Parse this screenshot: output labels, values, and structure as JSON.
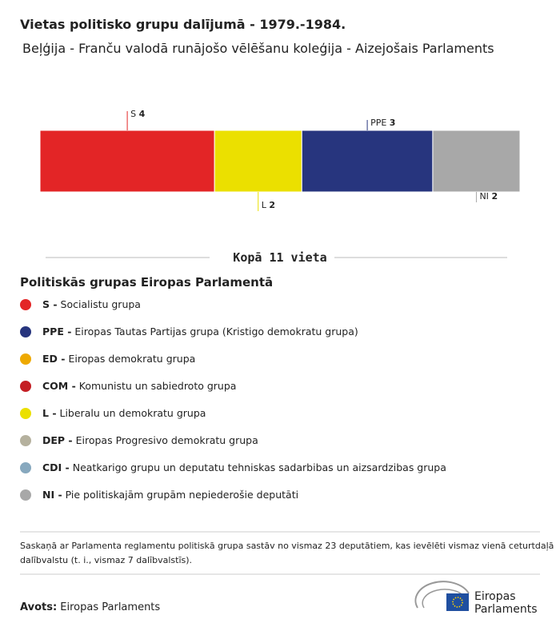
{
  "chart_data": {
    "type": "stacked_bar",
    "title": "Vietas politisko grupu dalījumā - 1979.-1984.",
    "subtitle": "Beļģija - Franču valodā runājošo vēlēšanu koleģija - Aizejošais Parlaments",
    "series": [
      {
        "name": "S",
        "color": "#e32526",
        "values": [
          4
        ]
      },
      {
        "name": "L",
        "color": "#ebe000",
        "values": [
          2
        ]
      },
      {
        "name": "PPE",
        "color": "#27357e",
        "values": [
          3
        ]
      },
      {
        "name": "NI",
        "color": "#a8a8a8",
        "values": [
          2
        ]
      }
    ],
    "total_label": "Kopā 11 vieta",
    "legend_title": "Politiskās grupas Eiropas Parlamentā",
    "legend": [
      {
        "abbr": "S -",
        "label": "Socialistu grupa",
        "color": "#e32526"
      },
      {
        "abbr": "PPE -",
        "label": "Eiropas Tautas Partijas grupa (Kristigo demokratu grupa)",
        "color": "#27357e"
      },
      {
        "abbr": "ED -",
        "label": "Eiropas demokratu grupa",
        "color": "#eea900"
      },
      {
        "abbr": "COM -",
        "label": "Komunistu un sabiedroto grupa",
        "color": "#c41e24"
      },
      {
        "abbr": "L -",
        "label": "Liberalu un demokratu grupa",
        "color": "#ebe000"
      },
      {
        "abbr": "DEP -",
        "label": "Eiropas Progresivo demokratu grupa",
        "color": "#b5b19e"
      },
      {
        "abbr": "CDI -",
        "label": "Neatkarigo grupu un deputatu tehniskas sadarbibas un aizsardzibas grupa",
        "color": "#87a8be"
      },
      {
        "abbr": "NI -",
        "label": "Pie politiskajām grupām nepiederošie deputāti",
        "color": "#a8a8a8"
      }
    ],
    "note": [
      "Saskaņā ar Parlamenta reglamentu politiskā grupa sastāv no vismaz 23 deputātiem, kas ievēlēti vismaz vienā ceturtdaļā",
      "dalībvalstu (t. i., vismaz 7 dalībvalstīs)."
    ],
    "source_label": "Avots:",
    "source": "Eiropas Parlaments",
    "logo": [
      "Eiropas",
      "Parlaments"
    ]
  }
}
